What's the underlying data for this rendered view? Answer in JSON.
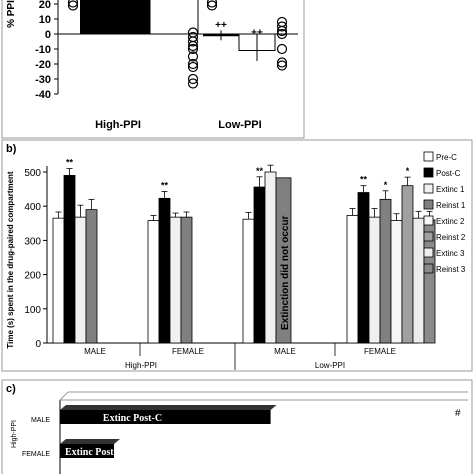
{
  "chart_data": [
    {
      "type": "bar",
      "panel_label": "",
      "ylabel": "% PPI",
      "ylim": [
        -40,
        20
      ],
      "yticks": [
        20,
        10,
        0,
        -10,
        -20,
        -30,
        -40
      ],
      "groups": [
        "High-PPI",
        "Low-PPI"
      ],
      "series": [
        {
          "values": [
            null,
            -1.5
          ]
        },
        {
          "values": [
            null,
            -11
          ]
        }
      ],
      "points_high": [
        {
          "x": 0,
          "y": 19
        },
        {
          "x": 0,
          "y": 21
        }
      ],
      "points_high_b": [
        {
          "x": 0,
          "y": 19
        },
        {
          "x": 0,
          "y": 21
        }
      ],
      "points_low": [
        1,
        -2,
        -5,
        -8,
        -10,
        -15,
        -20,
        -22,
        -30,
        -33
      ],
      "points_low_b": [
        8,
        5,
        2,
        0,
        -10,
        -19,
        -21
      ],
      "annotations": [
        "++",
        "++"
      ]
    },
    {
      "type": "bar",
      "panel_label": "b)",
      "ylabel": "Time (s) spent in the drug-paired compartment",
      "ylim": [
        0,
        500
      ],
      "yticks": [
        0,
        100,
        200,
        300,
        400,
        500
      ],
      "legend": [
        "Pre-C",
        "Post-C",
        "Extinc 1",
        "Reinst 1",
        "Extinc 2",
        "Reinst 2",
        "Extinc 3",
        "Reinst 3"
      ],
      "groups": [
        {
          "sex": "MALE",
          "ppi": "High-PPI",
          "values": [
            365,
            490,
            368,
            390,
            null,
            null,
            null,
            null
          ],
          "errors": [
            18,
            20,
            35,
            30,
            null,
            null,
            null,
            null
          ],
          "sig": [
            "",
            "**",
            "",
            "",
            "",
            "",
            "",
            ""
          ]
        },
        {
          "sex": "FEMALE",
          "ppi": "High-PPI",
          "values": [
            358,
            423,
            368,
            368,
            null,
            null,
            null,
            null
          ],
          "errors": [
            15,
            20,
            12,
            15,
            null,
            null,
            null,
            null
          ],
          "sig": [
            "",
            "**",
            "",
            "",
            "",
            "",
            "",
            ""
          ]
        },
        {
          "sex": "MALE",
          "ppi": "Low-PPI",
          "values": [
            362,
            456,
            500,
            483,
            null,
            null,
            null,
            null
          ],
          "errors": [
            20,
            30,
            20,
            0,
            null,
            null,
            null,
            null
          ],
          "sig": [
            "",
            "**",
            "",
            "",
            "",
            "",
            "",
            ""
          ]
        },
        {
          "sex": "FEMALE",
          "ppi": "Low-PPI",
          "values": [
            373,
            440,
            368,
            420,
            358,
            460,
            365,
            360
          ],
          "errors": [
            20,
            20,
            25,
            25,
            20,
            25,
            20,
            25
          ],
          "sig": [
            "",
            "**",
            "",
            "*",
            "",
            "*",
            "",
            ""
          ]
        }
      ],
      "annotation": "Extinction did not occur",
      "ppi_labels": [
        "High-PPI",
        "Low-PPI"
      ]
    },
    {
      "type": "bar",
      "panel_label": "c)",
      "rows": [
        {
          "ppi": "High-PPI",
          "sex": "MALE",
          "label": "Extinc Post-C",
          "value": 0.78
        },
        {
          "ppi": "High-PPI",
          "sex": "FEMALE",
          "label": "Extinc Post-C",
          "value": 0.2
        }
      ],
      "marker": "#"
    }
  ]
}
